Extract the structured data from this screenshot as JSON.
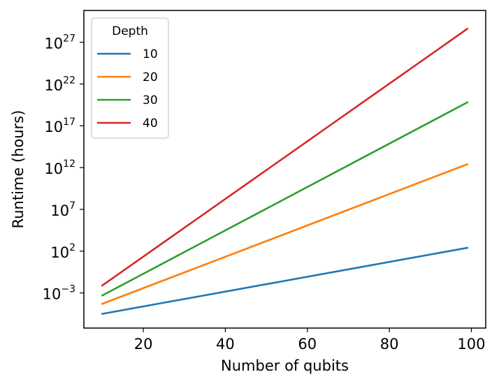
{
  "chart_data": {
    "type": "line",
    "title": "",
    "xlabel": "Number of qubits",
    "ylabel": "Runtime (hours)",
    "xlim": [
      5.5,
      103.5
    ],
    "ylim_log10": [
      -7.2,
      30.8
    ],
    "y_scale": "log",
    "grid": false,
    "x_ticks": [
      20,
      40,
      60,
      80,
      100
    ],
    "x_tick_labels": [
      "20",
      "40",
      "60",
      "80",
      "100"
    ],
    "y_ticks": [
      {
        "base": "10",
        "exp": "−3",
        "log10": -3
      },
      {
        "base": "10",
        "exp": "2",
        "log10": 2
      },
      {
        "base": "10",
        "exp": "7",
        "log10": 7
      },
      {
        "base": "10",
        "exp": "12",
        "log10": 12
      },
      {
        "base": "10",
        "exp": "17",
        "log10": 17
      },
      {
        "base": "10",
        "exp": "22",
        "log10": 22
      },
      {
        "base": "10",
        "exp": "27",
        "log10": 27
      }
    ],
    "legend": {
      "title": "Depth",
      "placement": "upper-left"
    },
    "series": [
      {
        "name": "10",
        "color": "#1f77b4",
        "x": [
          10,
          99
        ],
        "y_log10": [
          -5.5,
          2.4
        ]
      },
      {
        "name": "20",
        "color": "#ff7f0e",
        "x": [
          10,
          99
        ],
        "y_log10": [
          -4.3,
          12.4
        ]
      },
      {
        "name": "30",
        "color": "#2ca02c",
        "x": [
          10,
          99
        ],
        "y_log10": [
          -3.3,
          19.8
        ]
      },
      {
        "name": "40",
        "color": "#d62728",
        "x": [
          10,
          99
        ],
        "y_log10": [
          -2.1,
          28.6
        ]
      }
    ]
  }
}
